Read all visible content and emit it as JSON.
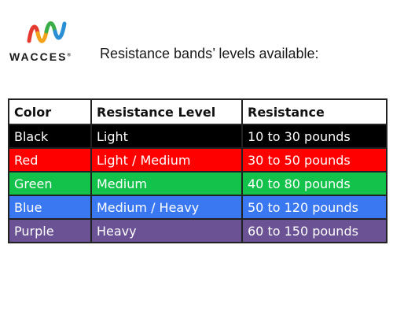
{
  "brand": {
    "name": "WACCES",
    "mark": "®"
  },
  "heading": "Resistance bands’ levels available:",
  "table": {
    "headers": [
      "Color",
      "Resistance Level",
      "Resistance"
    ],
    "rows": [
      {
        "color": "Black",
        "level": "Light",
        "resistance": "10 to 30 pounds",
        "bg": "#000000"
      },
      {
        "color": "Red",
        "level": "Light / Medium",
        "resistance": "30 to 50 pounds",
        "bg": "#ff0000"
      },
      {
        "color": "Green",
        "level": "Medium",
        "resistance": "40 to 80 pounds",
        "bg": "#12c24a"
      },
      {
        "color": "Blue",
        "level": "Medium / Heavy",
        "resistance": "50 to 120 pounds",
        "bg": "#3a78f2"
      },
      {
        "color": "Purple",
        "level": "Heavy",
        "resistance": "60 to 150 pounds",
        "bg": "#6a5294"
      }
    ]
  }
}
